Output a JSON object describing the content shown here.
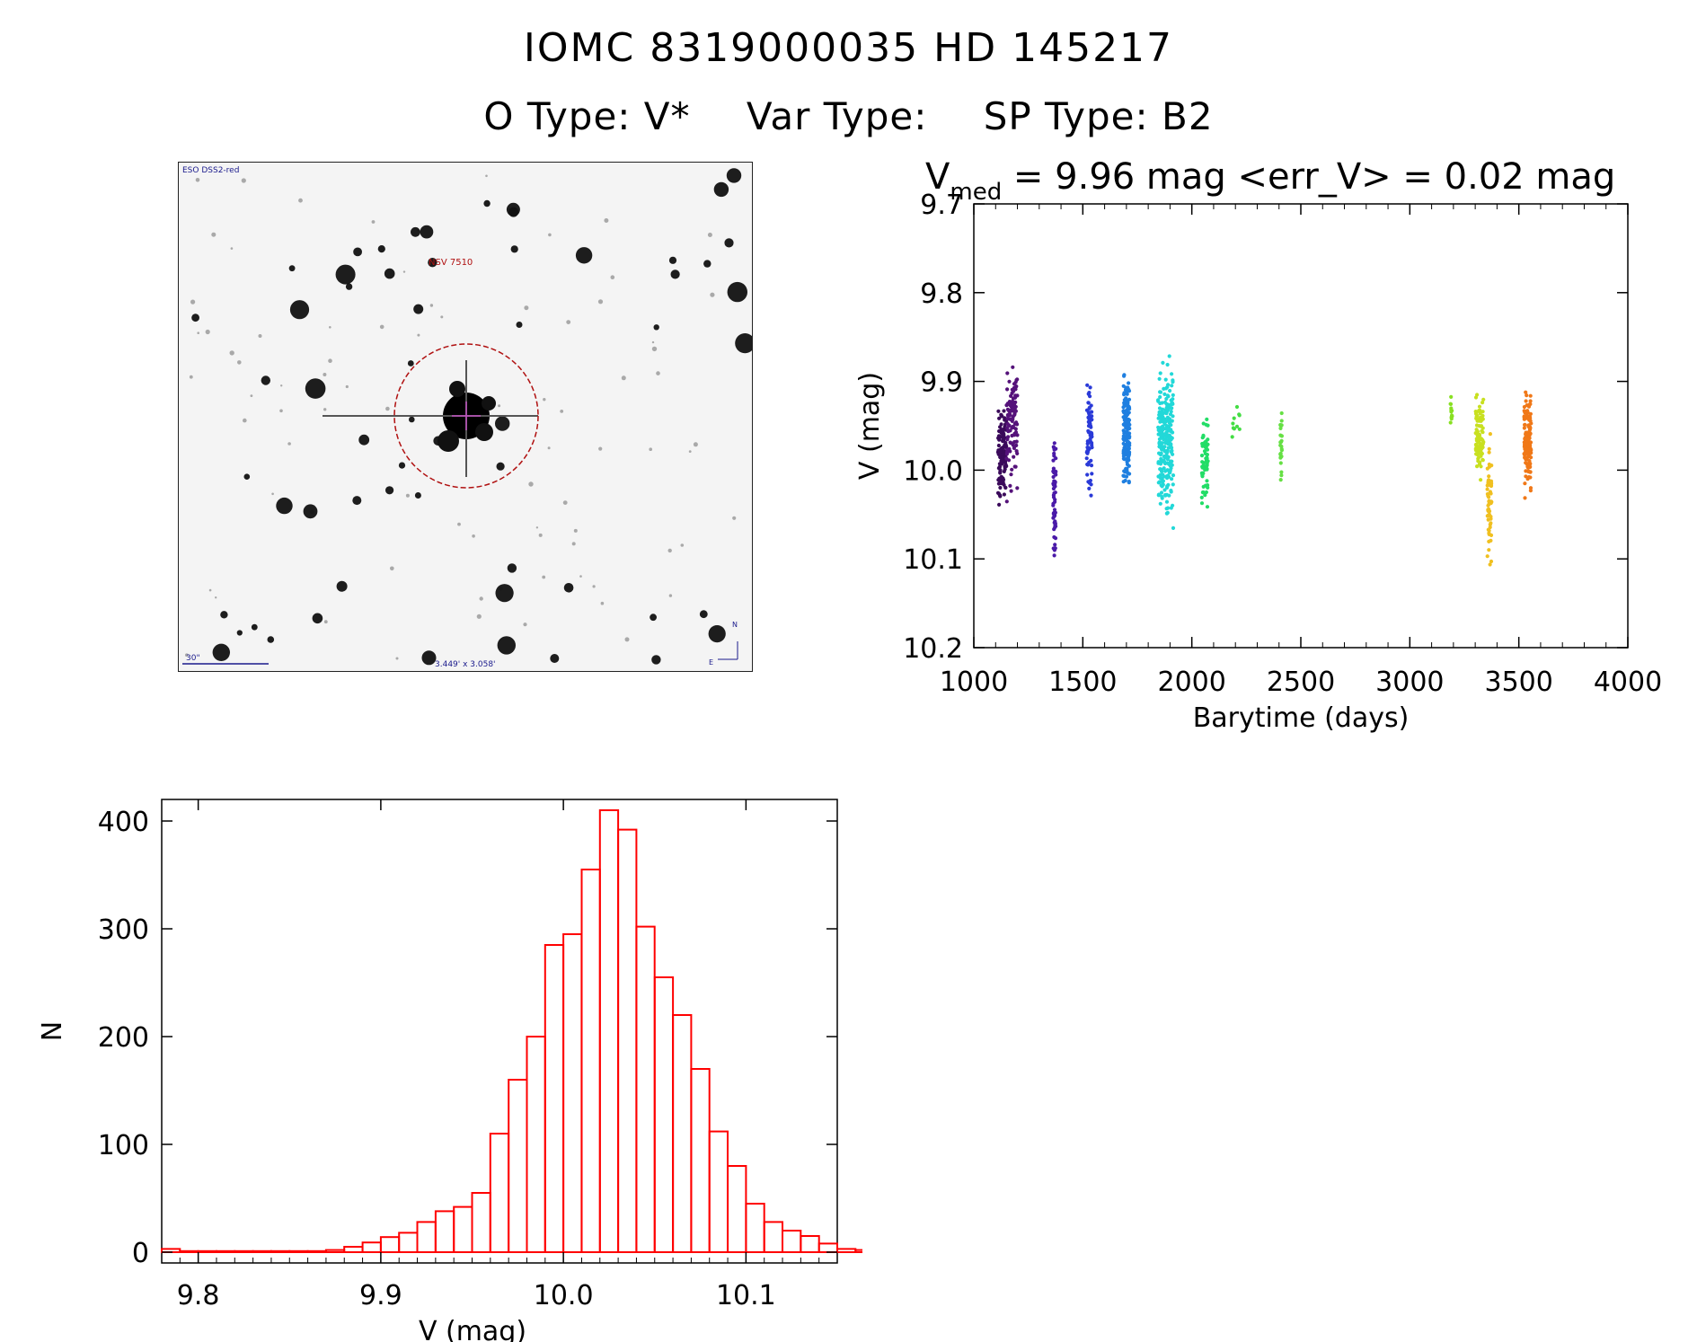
{
  "header": {
    "title_line1": "IOMC 8319000035    HD 145217",
    "otype": "O Type: V*",
    "vartype": "Var Type:",
    "sptype": "SP Type: B2"
  },
  "finder": {
    "survey_label": "ESO DSS2-red",
    "target_label": "NSV 7510",
    "scale_label": "30\"",
    "fov_label": "3.449' x 3.058'",
    "north_label": "N",
    "east_label": "E",
    "colors": {
      "ink": "#1a1a8c",
      "target": "#b01010"
    }
  },
  "chart_data": [
    {
      "type": "scatter",
      "title_prefix": "V",
      "title_sub": "med",
      "title_rest": " = 9.96 mag <err_V> = 0.02 mag",
      "xlabel": "Barytime (days)",
      "ylabel": "V (mag)",
      "xlim": [
        1000,
        4000
      ],
      "ylim": [
        10.2,
        9.7
      ],
      "y_inverted": true,
      "xticks": [
        1000,
        1500,
        2000,
        2500,
        3000,
        3500,
        4000
      ],
      "yticks": [
        "9.7",
        "9.8",
        "9.9",
        "10.0",
        "10.1",
        "10.2"
      ],
      "grid": false,
      "clusters": [
        {
          "x": 1130,
          "xspread": 20,
          "ymin": 9.91,
          "ymax": 10.05,
          "n": 120,
          "color": "#3a0a5a"
        },
        {
          "x": 1175,
          "xspread": 25,
          "ymin": 9.85,
          "ymax": 10.04,
          "n": 110,
          "color": "#55127a"
        },
        {
          "x": 1370,
          "xspread": 6,
          "ymin": 9.92,
          "ymax": 10.13,
          "n": 60,
          "color": "#4a1aa8"
        },
        {
          "x": 1530,
          "xspread": 12,
          "ymin": 9.87,
          "ymax": 10.05,
          "n": 70,
          "color": "#2a3ad8"
        },
        {
          "x": 1700,
          "xspread": 14,
          "ymin": 9.87,
          "ymax": 10.04,
          "n": 160,
          "color": "#1f7fe0"
        },
        {
          "x": 1880,
          "xspread": 35,
          "ymin": 9.86,
          "ymax": 10.08,
          "n": 260,
          "color": "#22d8d8"
        },
        {
          "x": 2060,
          "xspread": 14,
          "ymin": 9.91,
          "ymax": 10.06,
          "n": 60,
          "color": "#22dd66"
        },
        {
          "x": 2200,
          "xspread": 20,
          "ymin": 9.92,
          "ymax": 9.97,
          "n": 10,
          "color": "#44dd44"
        },
        {
          "x": 2410,
          "xspread": 4,
          "ymin": 9.9,
          "ymax": 10.03,
          "n": 25,
          "color": "#66e044"
        },
        {
          "x": 3190,
          "xspread": 4,
          "ymin": 9.9,
          "ymax": 9.96,
          "n": 12,
          "color": "#88e022"
        },
        {
          "x": 3320,
          "xspread": 18,
          "ymin": 9.9,
          "ymax": 10.02,
          "n": 90,
          "color": "#c8e020"
        },
        {
          "x": 3365,
          "xspread": 10,
          "ymin": 9.93,
          "ymax": 10.14,
          "n": 60,
          "color": "#f0c020"
        },
        {
          "x": 3540,
          "xspread": 16,
          "ymin": 9.89,
          "ymax": 10.04,
          "n": 140,
          "color": "#f07818"
        }
      ]
    },
    {
      "type": "bar",
      "subtype": "histogram",
      "xlabel": "V (mag)",
      "ylabel": "N",
      "xlim": [
        9.78,
        10.15
      ],
      "ylim": [
        0,
        420
      ],
      "xticks": [
        "9.8",
        "9.9",
        "10.0",
        "10.1"
      ],
      "yticks": [
        0,
        100,
        200,
        300,
        400
      ],
      "bin_width": 0.01,
      "bin_start": 9.78,
      "counts": [
        3,
        1,
        1,
        1,
        1,
        1,
        1,
        1,
        1,
        2,
        5,
        9,
        14,
        18,
        28,
        38,
        42,
        55,
        110,
        160,
        200,
        285,
        295,
        355,
        410,
        392,
        302,
        255,
        220,
        170,
        112,
        80,
        45,
        28,
        20,
        15,
        8,
        3,
        2,
        3,
        4,
        1,
        5,
        4,
        2,
        1,
        1
      ],
      "color": "#ff0000"
    }
  ]
}
